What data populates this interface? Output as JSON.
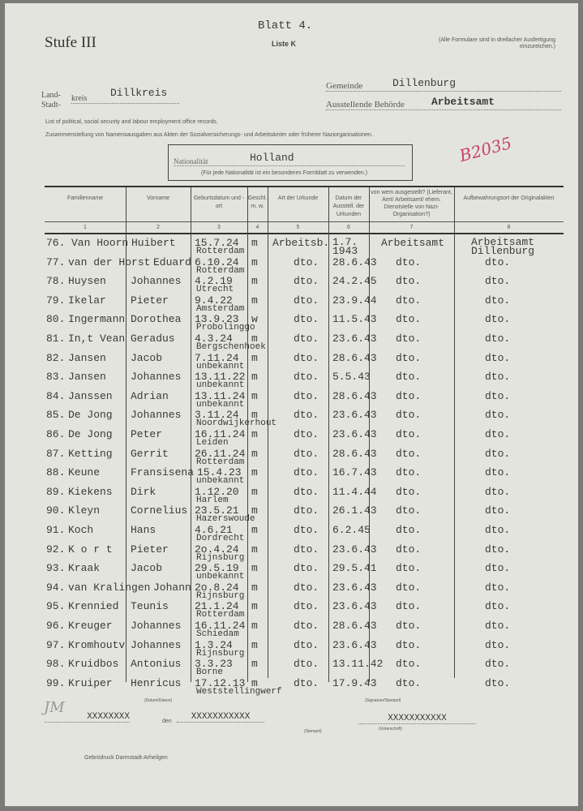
{
  "header": {
    "sheet": "Blatt 4.",
    "stage": "Stufe III",
    "list": "Liste K",
    "note": "(Alle Formulare sind in dreifacher Ausfertigung einzureichen.)",
    "land_label": "Land-",
    "stadt_label": "Stadt-",
    "kreis_label": "kreis",
    "kreis_value": "Dillkreis",
    "gemeinde_label": "Gemeinde",
    "gemeinde_value": "Dillenburg",
    "behoerde_label": "Ausstellende Behörde",
    "behoerde_value": "Arbeitsamt",
    "line_en": "List of political, social security and labour employment office records.",
    "line_de": "Zusammenstellung von Namensausgaben aus Akten der Sozialversicherungs- und Arbeitsämter oder früherer Naziorganisationen.",
    "nationality_label": "Nationalität",
    "nationality_value": "Holland",
    "nationality_note": "(Für jede Nationalität ist ein besonderes Formblatt zu verwenden.)",
    "stamp": "B2035"
  },
  "columns": [
    {
      "label": "Familienname",
      "num": "1"
    },
    {
      "label": "Vorname",
      "num": "2"
    },
    {
      "label": "Geburtsdatum und -ort",
      "num": "3"
    },
    {
      "label": "Geschl. m. w.",
      "num": "4"
    },
    {
      "label": "Art der Urkunde",
      "num": "5"
    },
    {
      "label": "Datum der Ausstell. der Urkunden",
      "num": "6"
    },
    {
      "label": "von wem ausgestellt? (Lieferant, Amt/ Arbeitsamt/ ehem. Dienststelle von Nazi-Organisation?)",
      "num": "7"
    },
    {
      "label": "Aufbewahrungsort der Originalakten",
      "num": "8"
    }
  ],
  "rows": [
    [
      "76.",
      "Van Hoorn",
      "Huibert",
      "15.7.24",
      "Rotterdam",
      "m",
      "Arbeitsb.",
      "1.7. 1943",
      "Arbeitsamt",
      "Arbeitsamt Dillenburg"
    ],
    [
      "77.",
      "van der Horst",
      "Eduard",
      "6.10.24",
      "Rotterdam",
      "m",
      "dto.",
      "28.6.43",
      "dto.",
      "dto."
    ],
    [
      "78.",
      "Huysen",
      "Johannes",
      "4.2.19",
      "Utrecht",
      "m",
      "dto.",
      "24.2.45",
      "dto.",
      "dto."
    ],
    [
      "79.",
      "Ikelar",
      "Pieter",
      "9.4.22",
      "Amsterdam",
      "m",
      "dto.",
      "23.9.44",
      "dto.",
      "dto."
    ],
    [
      "80.",
      "Ingermann",
      "Dorothea",
      "13.9.23",
      "Probolinggo",
      "w",
      "dto.",
      "11.5.43",
      "dto.",
      "dto."
    ],
    [
      "81.",
      "In,t Vean",
      "Geradus",
      "4.3.24",
      "Bergschenhoek",
      "m",
      "dto.",
      "23.6.43",
      "dto.",
      "dto."
    ],
    [
      "82.",
      "Jansen",
      "Jacob",
      "7.11.24",
      "unbekannt",
      "m",
      "dto.",
      "28.6.43",
      "dto.",
      "dto."
    ],
    [
      "83.",
      "Jansen",
      "Johannes",
      "13.11.22",
      "unbekannt",
      "m",
      "dto.",
      "5.5.43",
      "dto.",
      "dto."
    ],
    [
      "84.",
      "Janssen",
      "Adrian",
      "13.11.24",
      "unbekannt",
      "m",
      "dto.",
      "28.6.43",
      "dto.",
      "dto."
    ],
    [
      "85.",
      "De Jong",
      "Johannes",
      "3.11.24",
      "Noordwijkerhout",
      "m",
      "dto.",
      "23.6.43",
      "dto.",
      "dto."
    ],
    [
      "86.",
      "De Jong",
      "Peter",
      "16.11.24",
      "Leiden",
      "m",
      "dto.",
      "23.6.43",
      "dto.",
      "dto."
    ],
    [
      "87.",
      "Ketting",
      "Gerrit",
      "26.11.24",
      "Rotterdam",
      "m",
      "dto.",
      "28.6.43",
      "dto.",
      "dto."
    ],
    [
      "88.",
      "Keune",
      "Fransisena",
      "15.4.23",
      "unbekannt",
      "m",
      "dto.",
      "16.7.43",
      "dto.",
      "dto."
    ],
    [
      "89.",
      "Kiekens",
      "Dirk",
      "1.12.20",
      "Harlem",
      "m",
      "dto.",
      "11.4.44",
      "dto.",
      "dto."
    ],
    [
      "90.",
      "Kleyn",
      "Cornelius",
      "23.5.21",
      "Hazerswoude",
      "m",
      "dto.",
      "26.1.43",
      "dto.",
      "dto."
    ],
    [
      "91.",
      "Koch",
      "Hans",
      "4.6.21",
      "Dordrecht",
      "m",
      "dto.",
      "6.2.45",
      "dto.",
      "dto."
    ],
    [
      "92.",
      "K o r t",
      "Pieter",
      "2o.4.24",
      "Rijnsburg",
      "m",
      "dto.",
      "23.6.43",
      "dto.",
      "dto."
    ],
    [
      "93.",
      "Kraak",
      "Jacob",
      "29.5.19",
      "unbekannt",
      "m",
      "dto.",
      "29.5.41",
      "dto.",
      "dto."
    ],
    [
      "94.",
      "van Kralingen",
      "Johann",
      "2o.8.24",
      "Rijnsburg",
      "m",
      "dto.",
      "23.6.43",
      "dto.",
      "dto."
    ],
    [
      "95.",
      "Krennied",
      "Teunis",
      "21.1.24",
      "Rotterdam",
      "m",
      "dto.",
      "23.6.43",
      "dto.",
      "dto."
    ],
    [
      "96.",
      "Kreuger",
      "Johannes",
      "16.11.24",
      "Schiedam",
      "m",
      "dto.",
      "28.6.43",
      "dto.",
      "dto."
    ],
    [
      "97.",
      "Kromhoutv",
      "Johannes",
      "1.3.24",
      "Rijnsburg",
      "m",
      "dto.",
      "23.6.43",
      "dto.",
      "dto."
    ],
    [
      "98.",
      "Kruidbos",
      "Antonius",
      "3.3.23",
      "Borne",
      "m",
      "dto.",
      "13.11.42",
      "dto.",
      "dto."
    ],
    [
      "99.",
      "Kruiper",
      "Henricus",
      "17.12.13",
      "Weststellingwerf",
      "m",
      "dto.",
      "17.9.43",
      "dto.",
      "dto."
    ]
  ],
  "footer": {
    "date_caption": "(Datum/Datum)",
    "signature_caption": "(Signature/Stampel)",
    "place_value": "XXXXXXXX",
    "den_label": "den",
    "date_value": "XXXXXXXXXXX",
    "stamp_caption": "(Stempel)",
    "signature_value": "XXXXXXXXXXX",
    "sign_caption": "(Unterschrift)",
    "initials": "JM",
    "printer": "Gebrüdruck Darmstadt-Arheilgen"
  }
}
